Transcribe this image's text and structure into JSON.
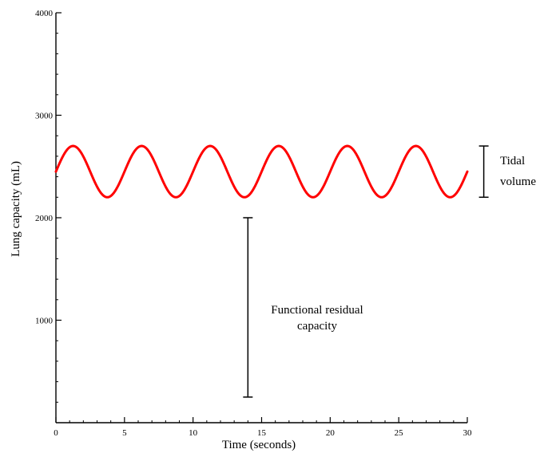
{
  "chart_data": {
    "type": "line",
    "xlabel": "Time (seconds)",
    "ylabel": "Lung capacity (mL)",
    "xlim": [
      0,
      30
    ],
    "ylim": [
      0,
      4000
    ],
    "x_ticks": [
      0,
      5,
      10,
      15,
      20,
      25,
      30
    ],
    "y_ticks": [
      1000,
      2000,
      3000,
      4000
    ],
    "x_minor_step": 1,
    "y_minor_step": 200,
    "grid": false,
    "series": [
      {
        "color": "#ff0000",
        "waveform": {
          "baseline": 2450,
          "amplitude": 250,
          "period": 5,
          "phase_peak_at": 1.25
        }
      }
    ],
    "annotations": {
      "tidal_volume": {
        "lines": [
          "Tidal",
          "volume"
        ],
        "x": 31.2,
        "y_range": [
          2200,
          2700
        ]
      },
      "functional_residual_capacity": {
        "lines": [
          "Functional residual",
          "capacity"
        ],
        "x": 14,
        "y_range": [
          250,
          2000
        ]
      }
    }
  }
}
